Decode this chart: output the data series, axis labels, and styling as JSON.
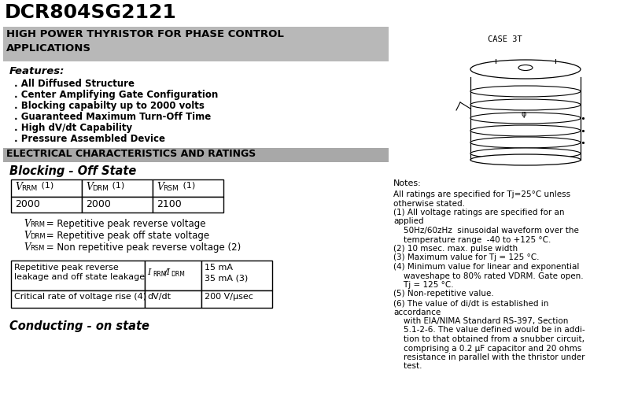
{
  "title": "DCR804SG2121",
  "features_header": "Features:",
  "features": [
    ". All Diffused Structure",
    ". Center Amplifying Gate Configuration",
    ". Blocking capabilty up to 2000 volts",
    ". Guaranteed Maximum Turn-Off Time",
    ". High dV/dt Capability",
    ". Pressure Assembled Device"
  ],
  "section2_header": "ELECTRICAL CHARACTERISTICS AND RATINGS",
  "blocking_header": "Blocking - Off State",
  "table1_values": [
    "2000",
    "2000",
    "2100"
  ],
  "conducting_header": "Conducting - on state",
  "case_label": "CASE 3T",
  "notes_header": "Notes:",
  "notes": [
    "All ratings are specified for Tj=25°C unless",
    "otherwise stated.",
    "(1) All voltage ratings are specified for an",
    "applied",
    "    50Hz/60zHz  sinusoidal waveform over the",
    "    temperature range  -40 to +125 °C.",
    "(2) 10 msec. max. pulse width",
    "(3) Maximum value for Tj = 125 °C.",
    "(4) Minimum value for linear and exponential",
    "    waveshape to 80% rated VDRM. Gate open.",
    "    Tj = 125 °C.",
    "(5) Non-repetitive value.",
    "(6) The value of di/dt is established in",
    "accordance",
    "    with EIA/NIMA Standard RS-397, Section",
    "    5.1-2-6. The value defined would be in addi-",
    "    tion to that obtained from a snubber circuit,",
    "    comprising a 0.2 μF capacitor and 20 ohms",
    "    resistance in parallel with the thristor under",
    "    test."
  ],
  "bg_color": "#ffffff",
  "subtitle_bg": "#b8b8b8",
  "elec_bg": "#a8a8a8"
}
